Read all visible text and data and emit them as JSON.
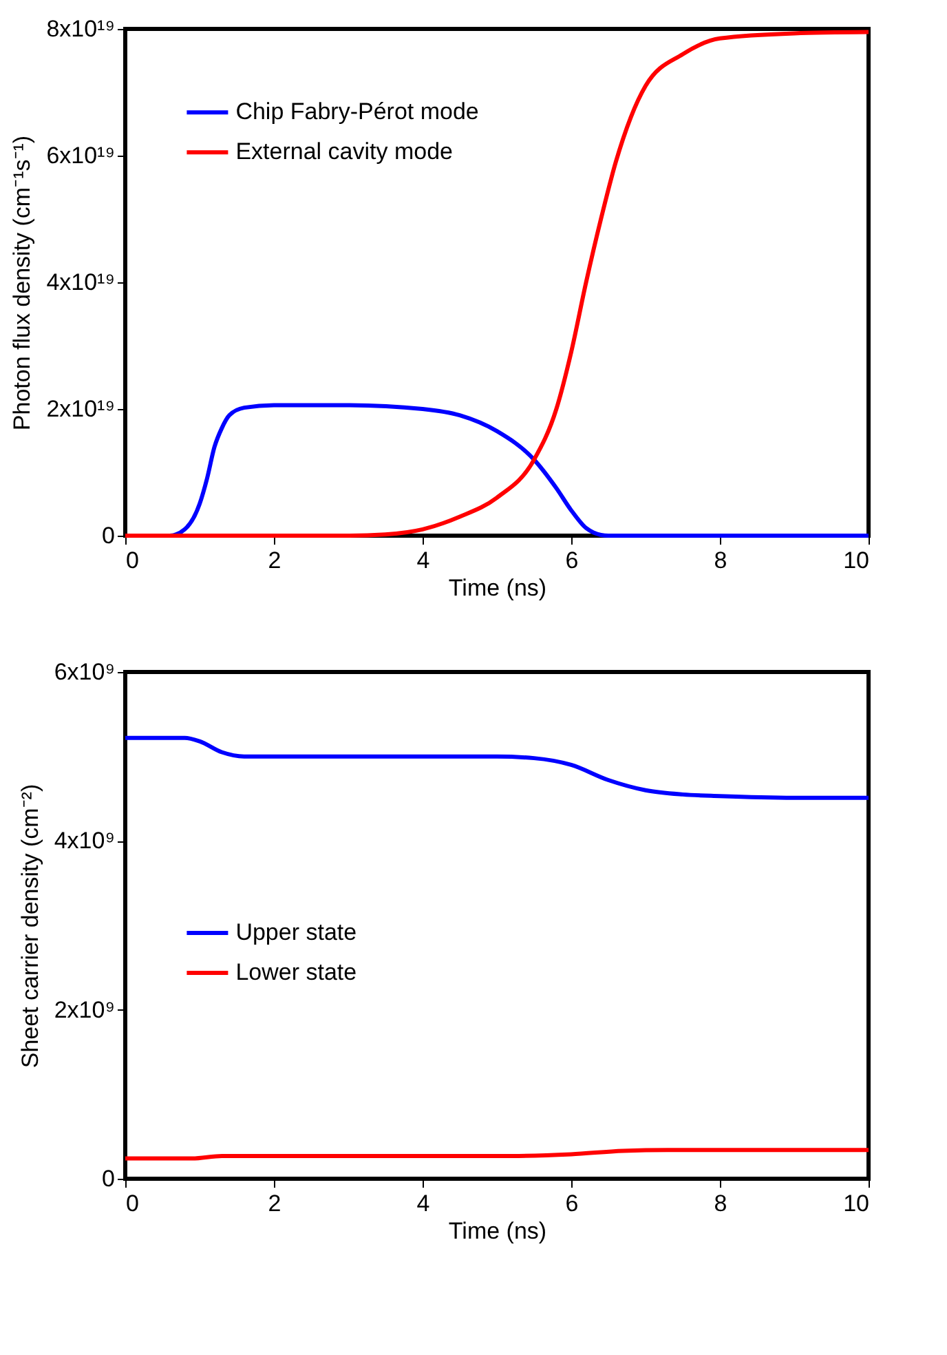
{
  "chart_data": [
    {
      "type": "line",
      "xlabel": "Time (ns)",
      "ylabel": "Photon flux density (cm⁻¹s⁻¹)",
      "xlim": [
        0,
        10
      ],
      "ylim": [
        0,
        8e+19
      ],
      "xticks": [
        0,
        2,
        4,
        6,
        8,
        10
      ],
      "yticks": [
        0,
        {
          "value": 2e+19,
          "label": "2x10¹⁹"
        },
        {
          "value": 4e+19,
          "label": "4x10¹⁹"
        },
        {
          "value": 6e+19,
          "label": "6x10¹⁹"
        },
        {
          "value": 8e+19,
          "label": "8x10¹⁹"
        }
      ],
      "grid": false,
      "legend": "top left",
      "line_style": "solid",
      "marker": "none",
      "series": [
        {
          "name": "Chip Fabry-Pérot mode",
          "color": "#0000ff",
          "x": [
            0,
            0.6,
            0.8,
            1.0,
            1.1,
            1.2,
            1.3,
            1.4,
            1.6,
            2,
            3,
            4,
            4.5,
            5,
            5.5,
            5.8,
            6,
            6.2,
            6.3,
            6.5,
            8,
            10
          ],
          "values": [
            0,
            0,
            1e+18,
            5e+18,
            9e+18,
            1.4e+19,
            1.7e+19,
            1.9e+19,
            2.02e+19,
            2.06e+19,
            2.06e+19,
            2e+19,
            1.9e+19,
            1.65e+19,
            1.2e+19,
            7.5e+18,
            4e+18,
            1.2e+18,
            5e+17,
            0,
            0,
            0
          ]
        },
        {
          "name": "External cavity mode",
          "color": "#ff0000",
          "x": [
            0,
            3,
            3.5,
            4,
            4.5,
            5,
            5.5,
            5.8,
            6,
            6.2,
            6.4,
            6.6,
            6.8,
            7,
            7.5,
            8,
            9,
            10
          ],
          "values": [
            0,
            0,
            2e+17,
            1e+18,
            3e+18,
            6e+18,
            1.2e+19,
            2e+19,
            2.9e+19,
            4e+19,
            5e+19,
            5.9e+19,
            6.6e+19,
            7.1e+19,
            7.6e+19,
            7.85e+19,
            7.93e+19,
            7.95e+19
          ]
        }
      ]
    },
    {
      "type": "line",
      "xlabel": "Time (ns)",
      "ylabel": "Sheet carrier density (cm⁻²)",
      "xlim": [
        0,
        10
      ],
      "ylim": [
        0,
        6000000000.0
      ],
      "xticks": [
        0,
        2,
        4,
        6,
        8,
        10
      ],
      "yticks": [
        0,
        {
          "value": 2000000000.0,
          "label": "2x10⁹"
        },
        {
          "value": 4000000000.0,
          "label": "4x10⁹"
        },
        {
          "value": 6000000000.0,
          "label": "6x10⁹"
        }
      ],
      "grid": false,
      "legend": "left",
      "line_style": "solid",
      "marker": "none",
      "series": [
        {
          "name": "Upper state",
          "color": "#0000ff",
          "x": [
            0,
            0.8,
            1.0,
            1.3,
            1.6,
            3,
            5,
            5.5,
            6,
            6.5,
            7,
            7.5,
            8,
            9,
            10
          ],
          "values": [
            5220000000.0,
            5220000000.0,
            5180000000.0,
            5050000000.0,
            5000000000.0,
            5000000000.0,
            5000000000.0,
            4980000000.0,
            4900000000.0,
            4720000000.0,
            4600000000.0,
            4550000000.0,
            4530000000.0,
            4510000000.0,
            4510000000.0
          ]
        },
        {
          "name": "Lower state",
          "color": "#ff0000",
          "x": [
            0,
            0.9,
            1.3,
            3,
            5.2,
            6,
            6.7,
            7.3,
            8,
            10
          ],
          "values": [
            240000000.0,
            240000000.0,
            270000000.0,
            270000000.0,
            270000000.0,
            290000000.0,
            330000000.0,
            340000000.0,
            340000000.0,
            340000000.0
          ]
        }
      ]
    }
  ]
}
